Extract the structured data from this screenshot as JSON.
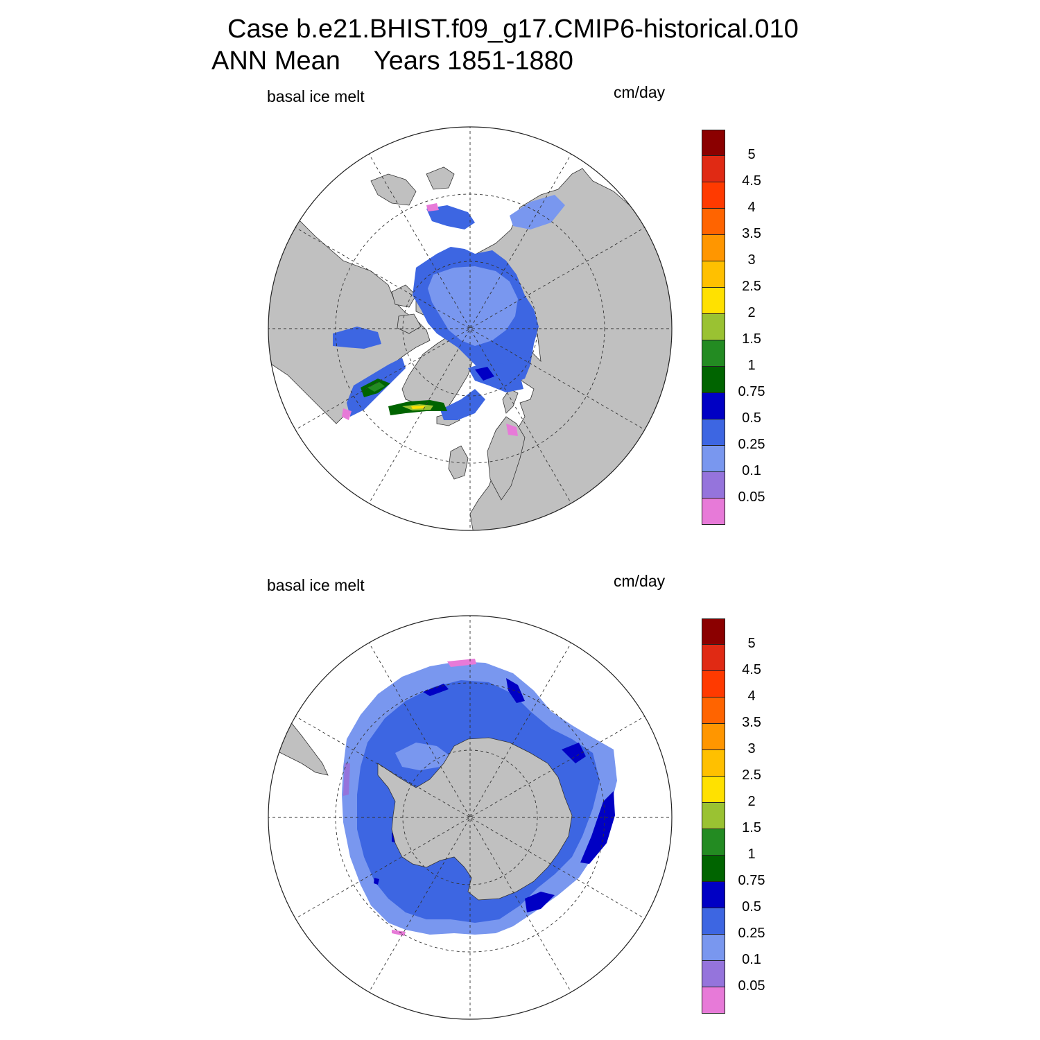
{
  "header": {
    "case_line": "Case b.e21.BHIST.f09_g17.CMIP6-historical.010",
    "period_label": "ANN Mean",
    "years_label": "Years 1851-1880"
  },
  "panels": [
    {
      "id": "north",
      "variable": "basal ice melt",
      "units": "cm/day"
    },
    {
      "id": "south",
      "variable": "basal ice melt",
      "units": "cm/day"
    }
  ],
  "colors": {
    "land": "#c0c0c0",
    "ocean_no_ice": "#ffffff",
    "graticule": "#333333"
  },
  "colorbar": {
    "levels": [
      "0.05",
      "0.1",
      "0.25",
      "0.5",
      "0.75",
      "1",
      "1.5",
      "2",
      "2.5",
      "3",
      "3.5",
      "4",
      "4.5",
      "5"
    ],
    "colors": [
      "#e77ad8",
      "#9574dc",
      "#7997ef",
      "#3d66e2",
      "#0000c4",
      "#006400",
      "#238b22",
      "#9ac232",
      "#ffe100",
      "#ffc000",
      "#ff9600",
      "#ff6400",
      "#ff3a00",
      "#e02a14",
      "#8b0000"
    ]
  }
}
